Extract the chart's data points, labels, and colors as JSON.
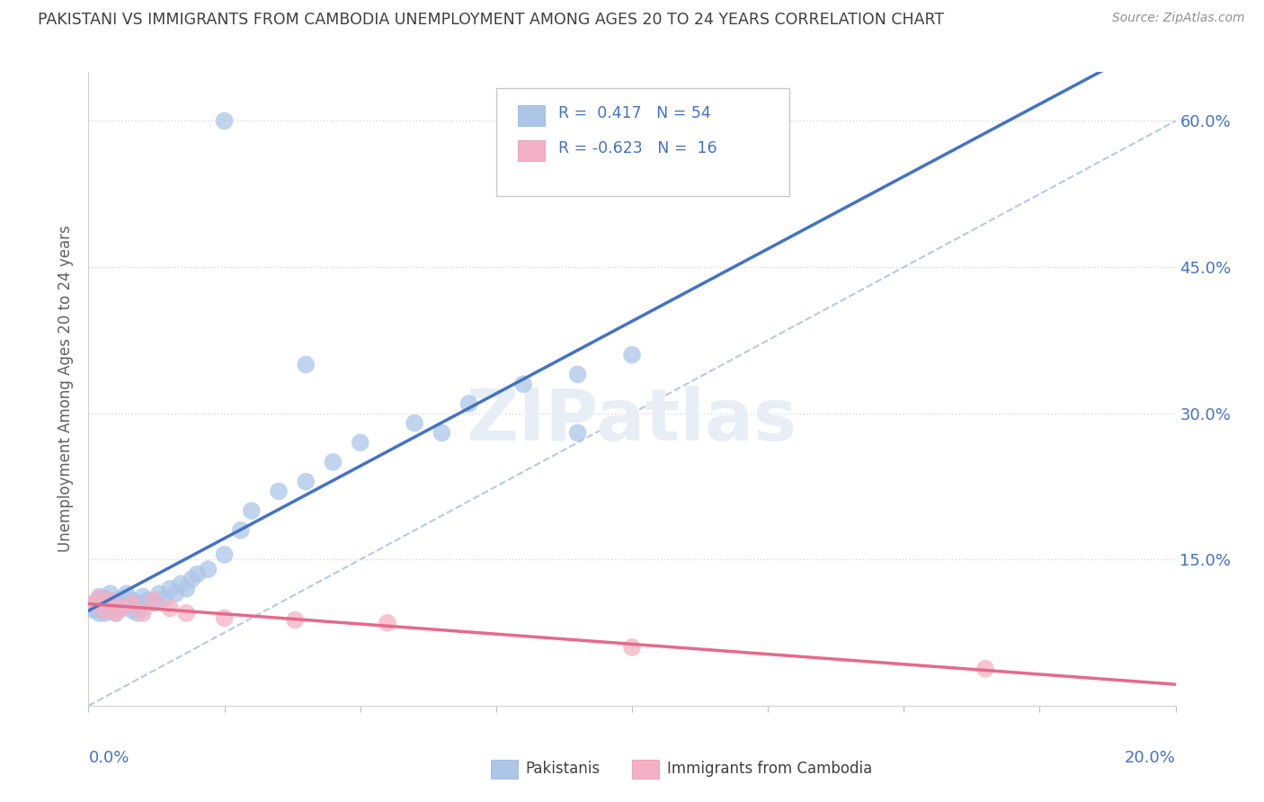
{
  "title": "PAKISTANI VS IMMIGRANTS FROM CAMBODIA UNEMPLOYMENT AMONG AGES 20 TO 24 YEARS CORRELATION CHART",
  "source": "Source: ZipAtlas.com",
  "ylabel_label": "Unemployment Among Ages 20 to 24 years",
  "legend_label1": "Pakistanis",
  "legend_label2": "Immigrants from Cambodia",
  "r1": 0.417,
  "n1": 54,
  "r2": -0.623,
  "n2": 16,
  "blue_color": "#adc6e8",
  "pink_color": "#f4b0c4",
  "blue_line_color": "#4472c4",
  "pink_line_color": "#e8688a",
  "dashed_line_color": "#b0c4de",
  "title_color": "#404040",
  "source_color": "#909090",
  "legend_r_color": "#4472c4",
  "x_min": 0.0,
  "x_max": 0.2,
  "y_min": 0.0,
  "y_max": 0.65,
  "blue_x": [
    0.001,
    0.001,
    0.001,
    0.002,
    0.002,
    0.002,
    0.002,
    0.003,
    0.003,
    0.003,
    0.003,
    0.004,
    0.004,
    0.004,
    0.005,
    0.005,
    0.005,
    0.006,
    0.006,
    0.007,
    0.007,
    0.008,
    0.008,
    0.009,
    0.009,
    0.01,
    0.01,
    0.011,
    0.012,
    0.013,
    0.014,
    0.015,
    0.016,
    0.017,
    0.018,
    0.019,
    0.02,
    0.022,
    0.025,
    0.028,
    0.03,
    0.035,
    0.04,
    0.045,
    0.05,
    0.06,
    0.07,
    0.08,
    0.09,
    0.1,
    0.025,
    0.04,
    0.065,
    0.09
  ],
  "blue_y": [
    0.098,
    0.1,
    0.105,
    0.095,
    0.102,
    0.108,
    0.112,
    0.095,
    0.1,
    0.105,
    0.11,
    0.098,
    0.105,
    0.115,
    0.095,
    0.102,
    0.108,
    0.1,
    0.11,
    0.105,
    0.115,
    0.098,
    0.108,
    0.095,
    0.105,
    0.1,
    0.112,
    0.108,
    0.105,
    0.115,
    0.11,
    0.12,
    0.115,
    0.125,
    0.12,
    0.13,
    0.135,
    0.14,
    0.155,
    0.18,
    0.2,
    0.22,
    0.23,
    0.25,
    0.27,
    0.29,
    0.31,
    0.33,
    0.34,
    0.36,
    0.6,
    0.35,
    0.28,
    0.28
  ],
  "pink_x": [
    0.001,
    0.002,
    0.003,
    0.004,
    0.005,
    0.006,
    0.008,
    0.01,
    0.012,
    0.015,
    0.018,
    0.025,
    0.038,
    0.055,
    0.1,
    0.165
  ],
  "pink_y": [
    0.105,
    0.11,
    0.098,
    0.108,
    0.095,
    0.1,
    0.105,
    0.095,
    0.108,
    0.1,
    0.095,
    0.09,
    0.088,
    0.085,
    0.06,
    0.038
  ]
}
